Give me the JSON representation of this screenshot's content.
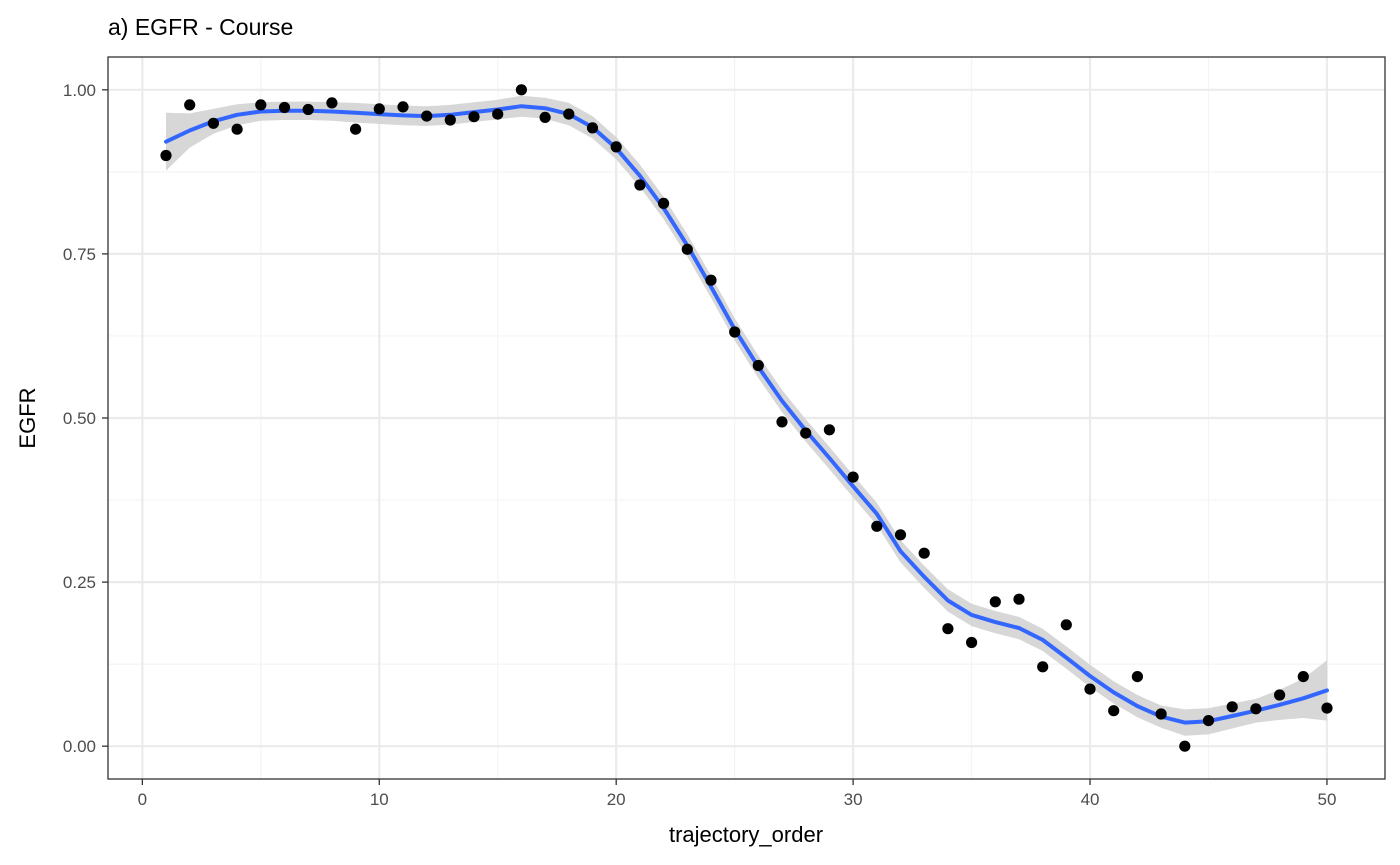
{
  "chart_data": {
    "type": "scatter",
    "title": "a) EGFR - Course",
    "xlabel": "trajectory_order",
    "ylabel": "EGFR",
    "xlim": [
      -1.45,
      52.45
    ],
    "ylim": [
      -0.05,
      1.05
    ],
    "x_ticks": [
      0,
      10,
      20,
      30,
      40,
      50
    ],
    "y_ticks": [
      0,
      0.25,
      0.5,
      0.75,
      1
    ],
    "x_tick_labels": [
      "0",
      "10",
      "20",
      "30",
      "40",
      "50"
    ],
    "y_tick_labels": [
      "0.00",
      "0.25",
      "0.50",
      "0.75",
      "1.00"
    ],
    "grid": true,
    "legend": "none",
    "points": {
      "x": [
        1,
        2,
        3,
        4,
        5,
        6,
        7,
        8,
        9,
        10,
        11,
        12,
        13,
        14,
        15,
        16,
        17,
        18,
        19,
        20,
        21,
        22,
        23,
        24,
        25,
        26,
        27,
        28,
        29,
        30,
        31,
        32,
        33,
        34,
        35,
        36,
        37,
        38,
        39,
        40,
        41,
        42,
        43,
        44,
        45,
        46,
        47,
        48,
        49,
        50
      ],
      "y": [
        0.9,
        0.977,
        0.949,
        0.94,
        0.977,
        0.973,
        0.97,
        0.98,
        0.94,
        0.971,
        0.974,
        0.96,
        0.954,
        0.959,
        0.963,
        1.0,
        0.958,
        0.963,
        0.942,
        0.913,
        0.855,
        0.827,
        0.757,
        0.71,
        0.631,
        0.58,
        0.494,
        0.477,
        0.482,
        0.41,
        0.335,
        0.322,
        0.294,
        0.179,
        0.158,
        0.22,
        0.224,
        0.121,
        0.185,
        0.087,
        0.054,
        0.106,
        0.049,
        0.0,
        0.039,
        0.06,
        0.057,
        0.078,
        0.106,
        0.058
      ]
    },
    "smooth": {
      "x": [
        1,
        2,
        3,
        4,
        5,
        6,
        7,
        8,
        9,
        10,
        11,
        12,
        13,
        14,
        15,
        16,
        17,
        18,
        19,
        20,
        21,
        22,
        23,
        24,
        25,
        26,
        27,
        28,
        29,
        30,
        31,
        32,
        33,
        34,
        35,
        36,
        37,
        38,
        39,
        40,
        41,
        42,
        43,
        44,
        45,
        46,
        47,
        48,
        49,
        50
      ],
      "y": [
        0.921,
        0.938,
        0.952,
        0.962,
        0.967,
        0.968,
        0.968,
        0.967,
        0.965,
        0.963,
        0.961,
        0.96,
        0.962,
        0.966,
        0.97,
        0.975,
        0.972,
        0.963,
        0.943,
        0.911,
        0.869,
        0.82,
        0.763,
        0.7,
        0.635,
        0.578,
        0.526,
        0.481,
        0.439,
        0.396,
        0.354,
        0.297,
        0.258,
        0.222,
        0.2,
        0.189,
        0.18,
        0.162,
        0.135,
        0.107,
        0.082,
        0.061,
        0.045,
        0.036,
        0.038,
        0.046,
        0.054,
        0.063,
        0.073,
        0.085
      ],
      "se_lower": [
        0.877,
        0.912,
        0.933,
        0.946,
        0.953,
        0.954,
        0.954,
        0.953,
        0.95,
        0.948,
        0.946,
        0.945,
        0.947,
        0.951,
        0.955,
        0.959,
        0.956,
        0.946,
        0.926,
        0.894,
        0.852,
        0.803,
        0.746,
        0.683,
        0.618,
        0.561,
        0.509,
        0.464,
        0.422,
        0.379,
        0.337,
        0.28,
        0.241,
        0.205,
        0.183,
        0.172,
        0.163,
        0.145,
        0.118,
        0.09,
        0.065,
        0.044,
        0.028,
        0.016,
        0.018,
        0.027,
        0.036,
        0.04,
        0.043,
        0.039
      ],
      "se_upper": [
        0.965,
        0.964,
        0.971,
        0.978,
        0.981,
        0.982,
        0.982,
        0.981,
        0.98,
        0.978,
        0.976,
        0.975,
        0.977,
        0.981,
        0.985,
        0.991,
        0.988,
        0.98,
        0.96,
        0.928,
        0.886,
        0.837,
        0.78,
        0.717,
        0.652,
        0.595,
        0.543,
        0.498,
        0.456,
        0.413,
        0.371,
        0.314,
        0.275,
        0.239,
        0.217,
        0.206,
        0.197,
        0.179,
        0.152,
        0.124,
        0.099,
        0.078,
        0.062,
        0.056,
        0.058,
        0.065,
        0.072,
        0.086,
        0.103,
        0.131
      ]
    },
    "colors": {
      "points": "#000000",
      "line": "#3366ff",
      "ribbon": "#d3d3d3",
      "grid_major": "#ebebeb",
      "grid_minor": "#f4f4f4",
      "panel_border": "#333333",
      "background": "#ffffff"
    }
  }
}
